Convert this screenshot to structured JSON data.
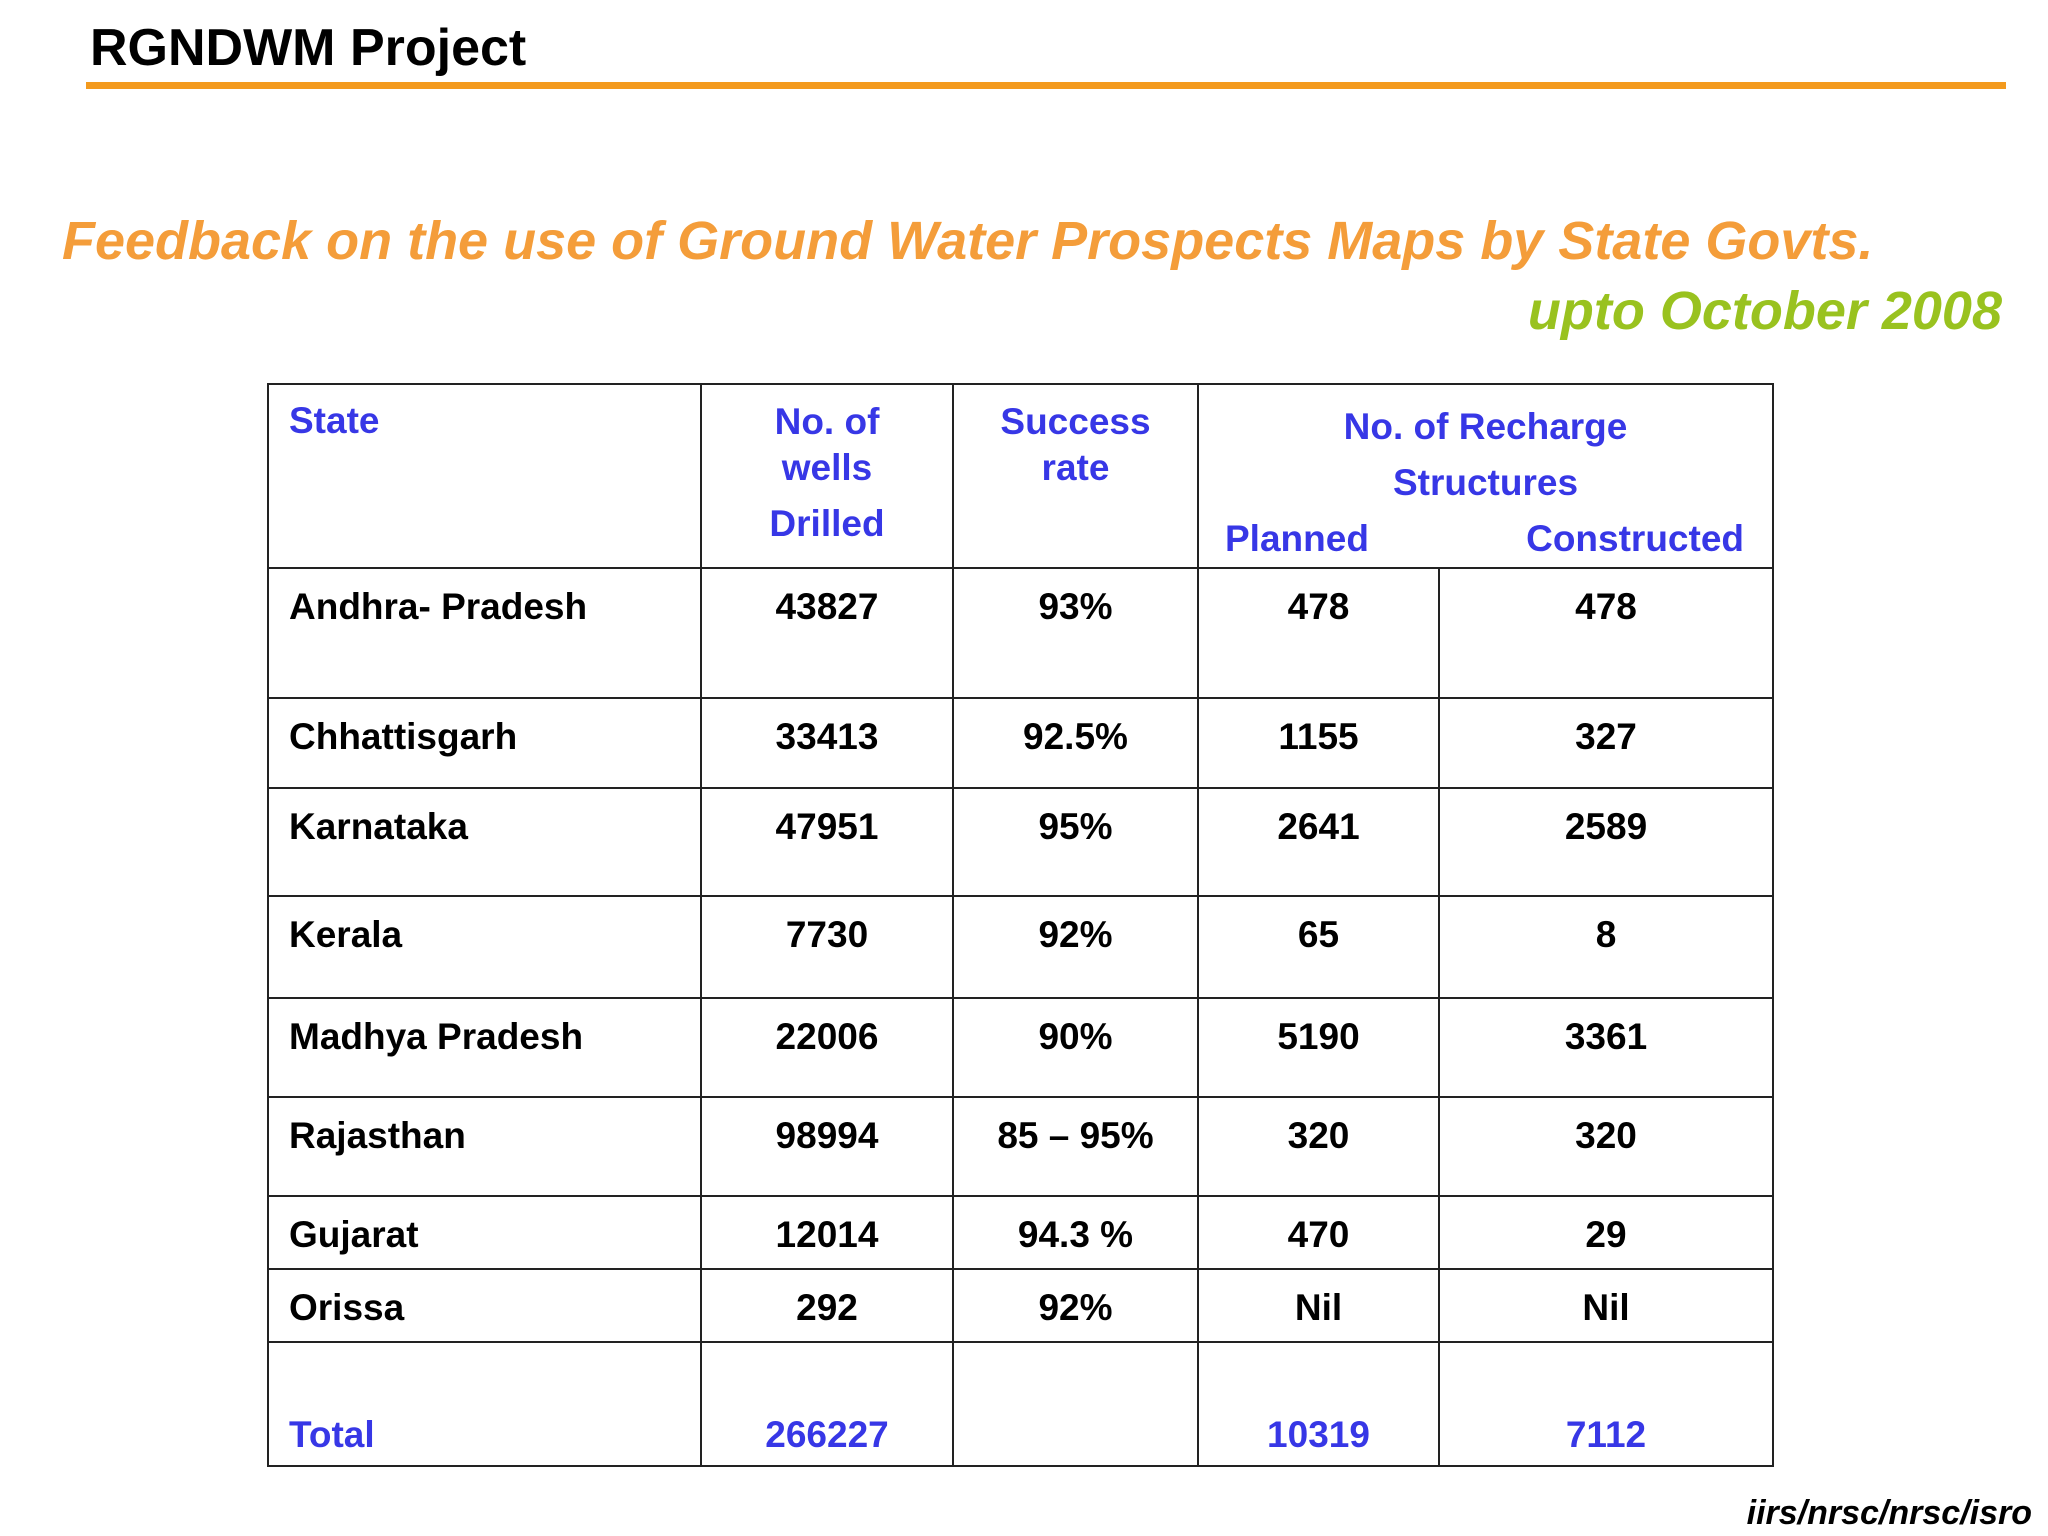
{
  "header": {
    "project_title": "RGNDWM Project",
    "rule_color": "#f39a1e"
  },
  "slide": {
    "title": "Feedback on the use of  Ground Water Prospects Maps by State Govts.",
    "subtitle": "upto October 2008",
    "title_color": "#f49d3a",
    "subtitle_color": "#99c21f"
  },
  "table": {
    "header_color": "#3737e6",
    "headers": {
      "state": "State",
      "wells_line1": "No. of",
      "wells_line2": "wells",
      "wells_line3": "Drilled",
      "success_line1": "Success",
      "success_line2": "rate",
      "recharge_line1": "No. of  Recharge",
      "recharge_line2": "Structures",
      "planned": "Planned",
      "constructed": "Constructed"
    },
    "rows": [
      {
        "state": "Andhra- Pradesh",
        "wells": "43827",
        "success": "93%",
        "planned": "478",
        "constructed": "478"
      },
      {
        "state": "Chhattisgarh",
        "wells": "33413",
        "success": "92.5%",
        "planned": "1155",
        "constructed": "327"
      },
      {
        "state": "Karnataka",
        "wells": "47951",
        "success": "95%",
        "planned": "2641",
        "constructed": "2589"
      },
      {
        "state": "Kerala",
        "wells": "7730",
        "success": "92%",
        "planned": "65",
        "constructed": "8"
      },
      {
        "state": "Madhya Pradesh",
        "wells": "22006",
        "success": "90%",
        "planned": "5190",
        "constructed": "3361"
      },
      {
        "state": "Rajasthan",
        "wells": "98994",
        "success": "85 – 95%",
        "planned": "320",
        "constructed": "320"
      },
      {
        "state": "Gujarat",
        "wells": "12014",
        "success": "94.3 %",
        "planned": "470",
        "constructed": "29"
      },
      {
        "state": "Orissa",
        "wells": "292",
        "success": "92%",
        "planned": "Nil",
        "constructed": "Nil"
      }
    ],
    "total": {
      "label": "Total",
      "wells": "266227",
      "success": "",
      "planned": "10319",
      "constructed": "7112"
    }
  },
  "footer": {
    "credit": "iirs/nrsc/nrsc/isro"
  }
}
